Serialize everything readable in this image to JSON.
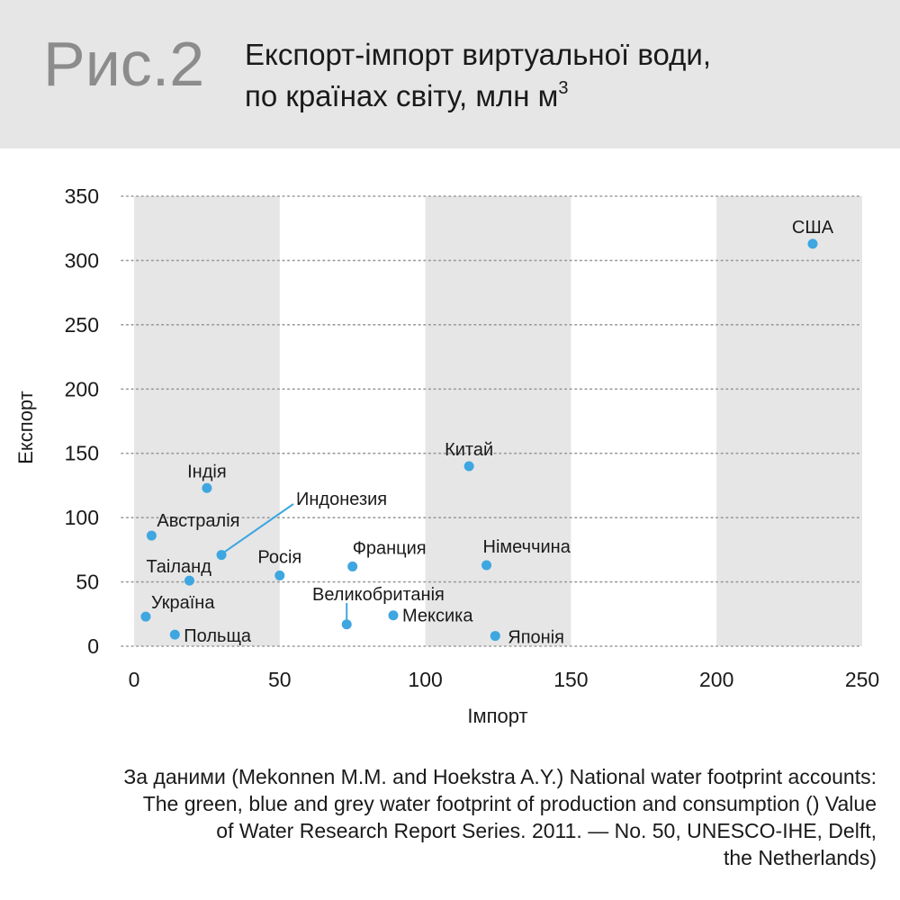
{
  "header": {
    "fig_label": "Рис.2",
    "title_line1": "Експорт-імпорт виртуальної води,",
    "title_line2": "по країнах світу, млн м",
    "title_sup": "3"
  },
  "chart_data": {
    "type": "scatter",
    "xlabel": "Імпорт",
    "ylabel": "Експорт",
    "xlim": [
      0,
      250
    ],
    "ylim": [
      0,
      350
    ],
    "x_ticks": [
      0,
      50,
      100,
      150,
      200,
      250
    ],
    "y_ticks": [
      0,
      50,
      100,
      150,
      200,
      250,
      300,
      350
    ],
    "grid": "horizontal dotted",
    "band_color": "#e6e6e6",
    "point_color": "#3ea6e0",
    "points": [
      {
        "label": "США",
        "x": 233,
        "y": 313
      },
      {
        "label": "Китай",
        "x": 115,
        "y": 140
      },
      {
        "label": "Індія",
        "x": 25,
        "y": 123
      },
      {
        "label": "Индонезия",
        "x": 30,
        "y": 71
      },
      {
        "label": "Австралія",
        "x": 6,
        "y": 86
      },
      {
        "label": "Таіланд",
        "x": 19,
        "y": 51
      },
      {
        "label": "Росія",
        "x": 50,
        "y": 55
      },
      {
        "label": "Франция",
        "x": 75,
        "y": 62
      },
      {
        "label": "Німеччина",
        "x": 121,
        "y": 63
      },
      {
        "label": "Великобританія",
        "x": 73,
        "y": 17
      },
      {
        "label": "Мексика",
        "x": 89,
        "y": 24
      },
      {
        "label": "Україна",
        "x": 4,
        "y": 23
      },
      {
        "label": "Польща",
        "x": 14,
        "y": 9
      },
      {
        "label": "Японія",
        "x": 124,
        "y": 8
      }
    ]
  },
  "source": {
    "line1": "За даними (Mekonnen M.M. and Hoekstra A.Y.) National water footprint accounts:",
    "line2": "The green, blue and grey water footprint of production and consumption () Value",
    "line3": "of Water Research Report Series. 2011. — No. 50, UNESCO-IHE, Delft,",
    "line4": "the Netherlands)"
  }
}
